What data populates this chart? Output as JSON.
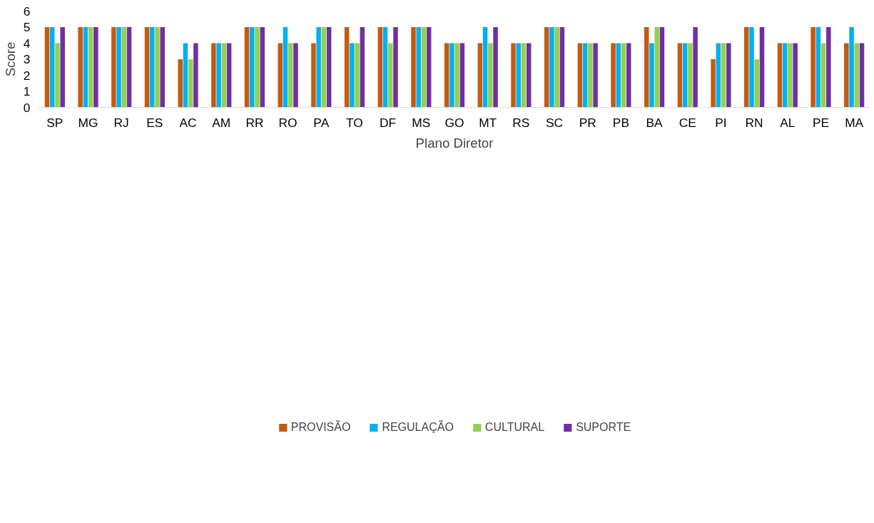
{
  "chart_data": {
    "type": "bar",
    "xlabel": "Plano Diretor",
    "ylabel": "Score",
    "categories": [
      "SP",
      "MG",
      "RJ",
      "ES",
      "AC",
      "AM",
      "RR",
      "RO",
      "PA",
      "TO",
      "DF",
      "MS",
      "GO",
      "MT",
      "RS",
      "SC",
      "PR",
      "PB",
      "BA",
      "CE",
      "PI",
      "RN",
      "AL",
      "PE",
      "MA"
    ],
    "series": [
      {
        "name": "PROVISÃO",
        "color": "#c55a11",
        "values": [
          5,
          5,
          5,
          5,
          3,
          4,
          5,
          4,
          4,
          5,
          5,
          5,
          4,
          4,
          4,
          5,
          4,
          4,
          5,
          4,
          3,
          5,
          4,
          5,
          4
        ]
      },
      {
        "name": "REGULAÇÃO",
        "color": "#00b0f0",
        "values": [
          5,
          5,
          5,
          5,
          4,
          4,
          5,
          5,
          5,
          4,
          5,
          5,
          4,
          5,
          4,
          5,
          4,
          4,
          4,
          4,
          4,
          5,
          4,
          5,
          5
        ]
      },
      {
        "name": "CULTURAL",
        "color": "#92d050",
        "values": [
          4,
          5,
          5,
          5,
          3,
          4,
          5,
          4,
          5,
          4,
          4,
          5,
          4,
          4,
          4,
          5,
          4,
          4,
          5,
          4,
          4,
          3,
          4,
          4,
          4
        ]
      },
      {
        "name": "SUPORTE",
        "color": "#7030a0",
        "values": [
          5,
          5,
          5,
          5,
          4,
          4,
          5,
          4,
          5,
          5,
          5,
          5,
          4,
          5,
          4,
          5,
          4,
          4,
          5,
          5,
          4,
          5,
          4,
          5,
          4
        ]
      }
    ],
    "ylim": [
      0,
      6
    ],
    "yticks": [
      0,
      1,
      2,
      3,
      4,
      5,
      6
    ],
    "grid": false,
    "legend": "bottom"
  }
}
